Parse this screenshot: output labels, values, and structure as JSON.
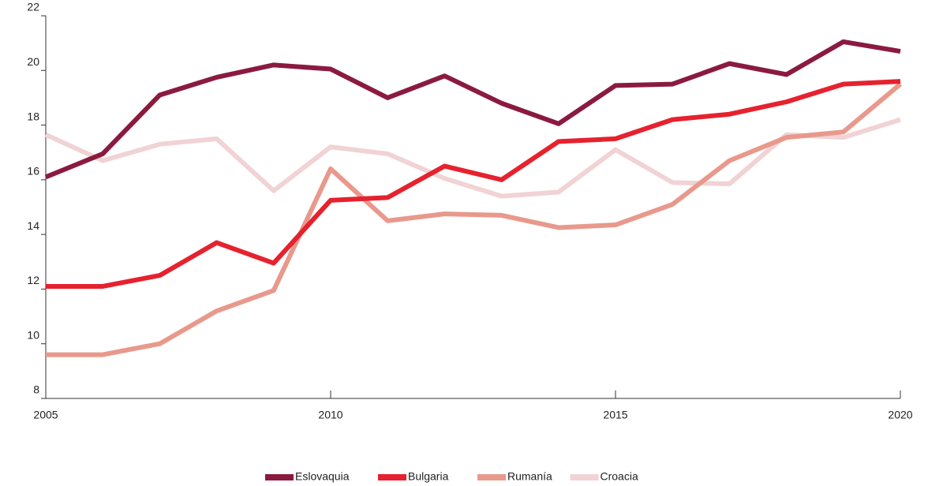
{
  "chart_data": {
    "type": "line",
    "x": [
      2005,
      2006,
      2007,
      2008,
      2009,
      2010,
      2011,
      2012,
      2013,
      2014,
      2015,
      2016,
      2017,
      2018,
      2019,
      2020
    ],
    "series": [
      {
        "name": "Eslovaquia",
        "color": "#8b1a3f",
        "values": [
          16.1,
          16.95,
          19.1,
          19.75,
          20.2,
          20.05,
          19.0,
          19.8,
          18.8,
          18.05,
          19.45,
          19.5,
          20.25,
          19.85,
          21.05,
          20.7
        ]
      },
      {
        "name": "Bulgaria",
        "color": "#e5222e",
        "values": [
          12.1,
          12.1,
          12.5,
          13.7,
          12.95,
          15.25,
          15.35,
          16.5,
          16.0,
          17.4,
          17.5,
          18.2,
          18.4,
          18.85,
          19.5,
          19.6
        ]
      },
      {
        "name": "Rumanía",
        "color": "#e8998c",
        "values": [
          9.6,
          9.6,
          10.0,
          11.2,
          11.95,
          16.4,
          14.5,
          14.75,
          14.7,
          14.25,
          14.35,
          15.1,
          16.7,
          17.55,
          17.75,
          19.5
        ]
      },
      {
        "name": "Croacia",
        "color": "#f1d3d5",
        "values": [
          17.65,
          16.7,
          17.3,
          17.5,
          15.6,
          17.2,
          16.95,
          16.05,
          15.4,
          15.55,
          17.1,
          15.9,
          15.85,
          17.65,
          17.55,
          18.2
        ]
      }
    ],
    "xlim": [
      2005,
      2020
    ],
    "xticks": [
      2005,
      2010,
      2015,
      2020
    ],
    "ylim": [
      8,
      22
    ],
    "yticks": [
      8,
      10,
      12,
      14,
      16,
      18,
      20,
      22
    ],
    "legend": "bottom"
  }
}
